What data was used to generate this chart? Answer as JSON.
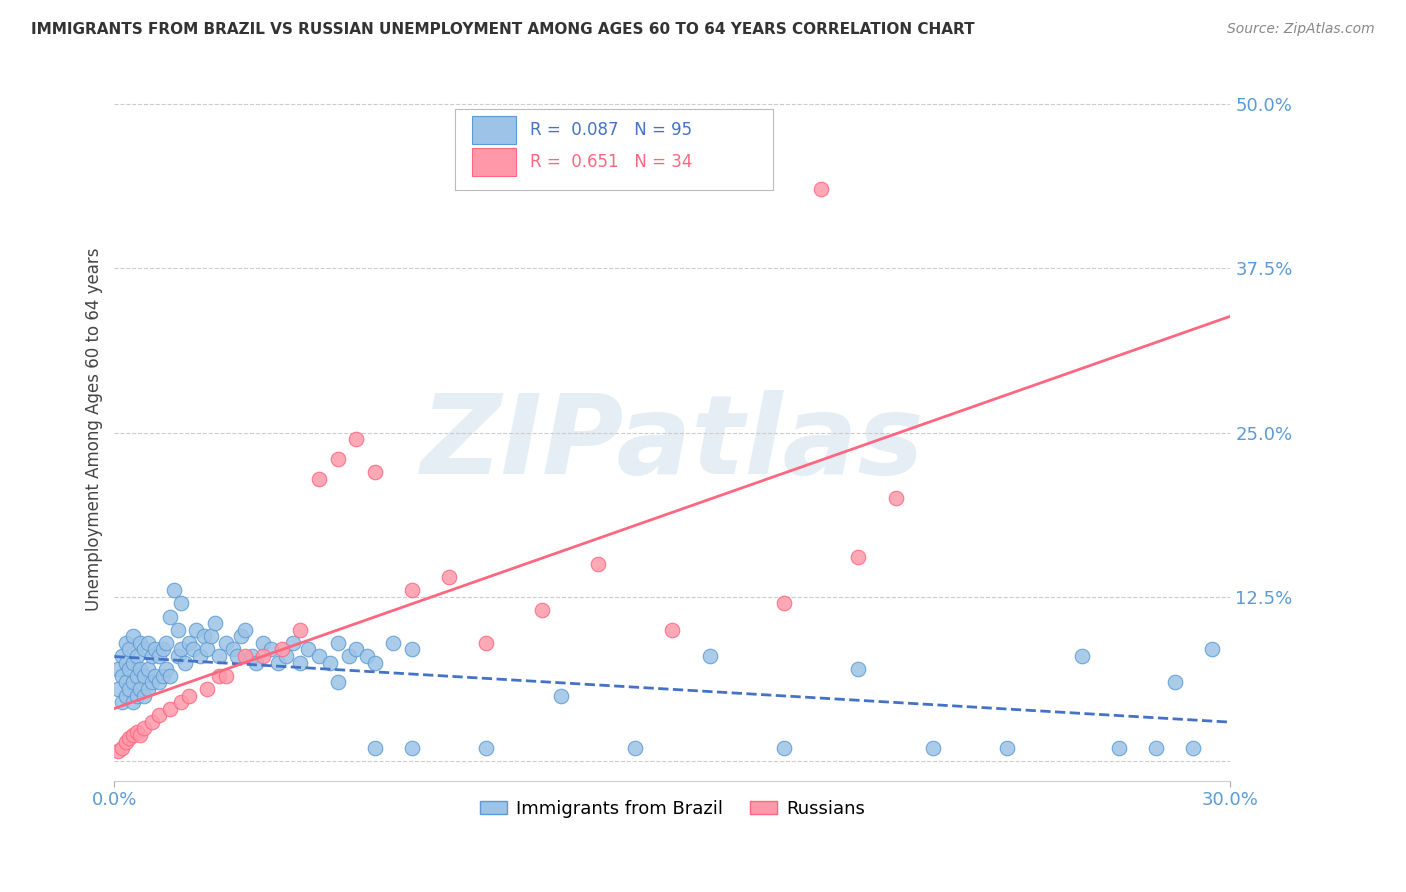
{
  "title": "IMMIGRANTS FROM BRAZIL VS RUSSIAN UNEMPLOYMENT AMONG AGES 60 TO 64 YEARS CORRELATION CHART",
  "source": "Source: ZipAtlas.com",
  "ylabel": "Unemployment Among Ages 60 to 64 years",
  "xlim": [
    0.0,
    0.3
  ],
  "ylim": [
    -0.015,
    0.52
  ],
  "yticks": [
    0.0,
    0.125,
    0.25,
    0.375,
    0.5
  ],
  "ytick_labels": [
    "",
    "12.5%",
    "25.0%",
    "37.5%",
    "50.0%"
  ],
  "xtick_labels": [
    "0.0%",
    "30.0%"
  ],
  "right_axis_color": "#5b9bd5",
  "brazil_color": "#9dc3e6",
  "brazil_edge_color": "#5b9bd5",
  "russian_color": "#ff99aa",
  "russian_edge_color": "#ff6680",
  "brazil_line_color": "#4472c4",
  "russian_line_color": "#ff6680",
  "legend_brazil_label": "Immigrants from Brazil",
  "legend_russian_label": "Russians",
  "R_brazil": 0.087,
  "N_brazil": 95,
  "R_russian": 0.651,
  "N_russian": 34,
  "watermark": "ZIPatlas",
  "background_color": "#ffffff",
  "brazil_x": [
    0.001,
    0.001,
    0.002,
    0.002,
    0.002,
    0.003,
    0.003,
    0.003,
    0.003,
    0.004,
    0.004,
    0.004,
    0.005,
    0.005,
    0.005,
    0.005,
    0.006,
    0.006,
    0.006,
    0.007,
    0.007,
    0.007,
    0.008,
    0.008,
    0.008,
    0.009,
    0.009,
    0.009,
    0.01,
    0.01,
    0.011,
    0.011,
    0.012,
    0.012,
    0.013,
    0.013,
    0.014,
    0.014,
    0.015,
    0.015,
    0.016,
    0.017,
    0.017,
    0.018,
    0.018,
    0.019,
    0.02,
    0.021,
    0.022,
    0.023,
    0.024,
    0.025,
    0.026,
    0.027,
    0.028,
    0.03,
    0.032,
    0.033,
    0.034,
    0.035,
    0.037,
    0.038,
    0.04,
    0.042,
    0.044,
    0.046,
    0.048,
    0.05,
    0.052,
    0.055,
    0.058,
    0.06,
    0.063,
    0.065,
    0.068,
    0.07,
    0.075,
    0.08,
    0.06,
    0.07,
    0.08,
    0.1,
    0.12,
    0.14,
    0.16,
    0.18,
    0.2,
    0.22,
    0.24,
    0.26,
    0.27,
    0.28,
    0.285,
    0.29,
    0.295
  ],
  "brazil_y": [
    0.055,
    0.07,
    0.045,
    0.065,
    0.08,
    0.05,
    0.06,
    0.075,
    0.09,
    0.055,
    0.07,
    0.085,
    0.045,
    0.06,
    0.075,
    0.095,
    0.05,
    0.065,
    0.08,
    0.055,
    0.07,
    0.09,
    0.05,
    0.065,
    0.085,
    0.055,
    0.07,
    0.09,
    0.06,
    0.08,
    0.065,
    0.085,
    0.06,
    0.08,
    0.065,
    0.085,
    0.07,
    0.09,
    0.065,
    0.11,
    0.13,
    0.08,
    0.1,
    0.12,
    0.085,
    0.075,
    0.09,
    0.085,
    0.1,
    0.08,
    0.095,
    0.085,
    0.095,
    0.105,
    0.08,
    0.09,
    0.085,
    0.08,
    0.095,
    0.1,
    0.08,
    0.075,
    0.09,
    0.085,
    0.075,
    0.08,
    0.09,
    0.075,
    0.085,
    0.08,
    0.075,
    0.09,
    0.08,
    0.085,
    0.08,
    0.075,
    0.09,
    0.085,
    0.06,
    0.01,
    0.01,
    0.01,
    0.05,
    0.01,
    0.08,
    0.01,
    0.07,
    0.01,
    0.01,
    0.08,
    0.01,
    0.01,
    0.06,
    0.01,
    0.085
  ],
  "russian_x": [
    0.001,
    0.002,
    0.003,
    0.004,
    0.005,
    0.006,
    0.007,
    0.008,
    0.01,
    0.012,
    0.015,
    0.018,
    0.02,
    0.025,
    0.028,
    0.03,
    0.035,
    0.04,
    0.045,
    0.05,
    0.055,
    0.06,
    0.065,
    0.07,
    0.08,
    0.09,
    0.1,
    0.115,
    0.13,
    0.15,
    0.18,
    0.2,
    0.21,
    0.19
  ],
  "russian_y": [
    0.008,
    0.01,
    0.015,
    0.018,
    0.02,
    0.022,
    0.02,
    0.025,
    0.03,
    0.035,
    0.04,
    0.045,
    0.05,
    0.055,
    0.065,
    0.065,
    0.08,
    0.08,
    0.085,
    0.1,
    0.215,
    0.23,
    0.245,
    0.22,
    0.13,
    0.14,
    0.09,
    0.115,
    0.15,
    0.1,
    0.12,
    0.155,
    0.2,
    0.435
  ]
}
